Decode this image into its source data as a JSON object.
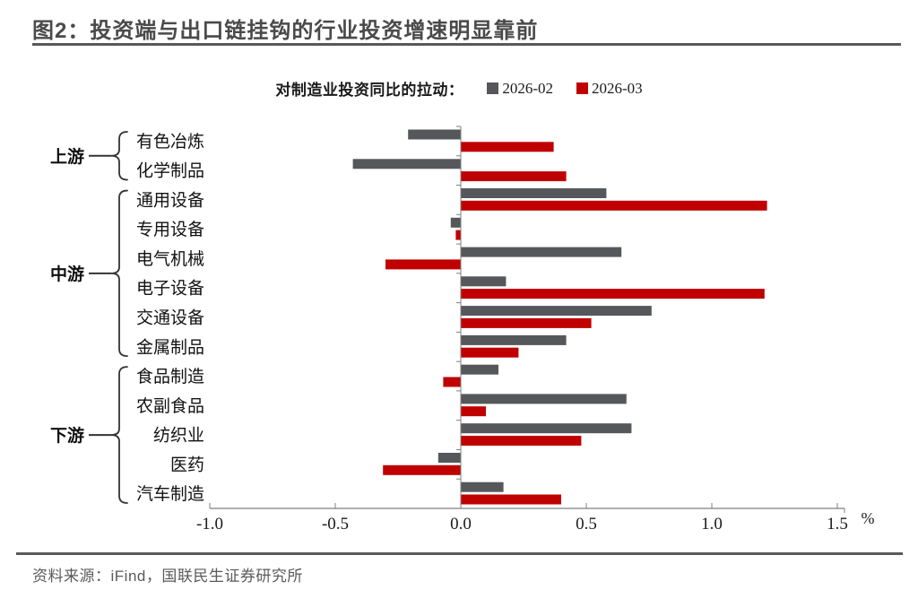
{
  "header": {
    "title": "图2：投资端与出口链挂钩的行业投资增速明显靠前"
  },
  "legend": {
    "label": "对制造业投资同比的拉动：",
    "series": [
      {
        "name": "2026-02",
        "color": "#55575A"
      },
      {
        "name": "2026-03",
        "color": "#C00000"
      }
    ]
  },
  "chart_data": {
    "type": "bar",
    "orientation": "horizontal",
    "title": "对制造业投资同比的拉动",
    "categories": [
      "有色冶炼",
      "化学制品",
      "通用设备",
      "专用设备",
      "电气机械",
      "电子设备",
      "交通设备",
      "金属制品",
      "食品制造",
      "农副食品",
      "纺织业",
      "医药",
      "汽车制造"
    ],
    "groups": [
      {
        "label": "上游",
        "categories": [
          "有色冶炼",
          "化学制品"
        ]
      },
      {
        "label": "中游",
        "categories": [
          "通用设备",
          "专用设备",
          "电气机械",
          "电子设备",
          "交通设备",
          "金属制品"
        ]
      },
      {
        "label": "下游",
        "categories": [
          "食品制造",
          "农副食品",
          "纺织业",
          "医药",
          "汽车制造"
        ]
      }
    ],
    "series": [
      {
        "name": "2026-02",
        "color": "#55575A",
        "values": [
          -0.21,
          -0.43,
          0.58,
          -0.04,
          0.64,
          0.18,
          0.76,
          0.42,
          0.15,
          0.66,
          0.68,
          -0.09,
          0.17
        ]
      },
      {
        "name": "2026-03",
        "color": "#C00000",
        "values": [
          0.37,
          0.42,
          1.22,
          -0.02,
          -0.3,
          1.21,
          0.52,
          0.23,
          -0.07,
          0.1,
          0.48,
          -0.31,
          0.4
        ]
      }
    ],
    "x_ticks": [
      -1.0,
      -0.5,
      0.0,
      0.5,
      1.0,
      1.5
    ],
    "xlim": [
      -1.0,
      1.5
    ],
    "x_unit": "%",
    "grid": false,
    "legend_position": "top"
  },
  "footer": {
    "source": "资料来源：iFind，国联民生证券研究所"
  }
}
